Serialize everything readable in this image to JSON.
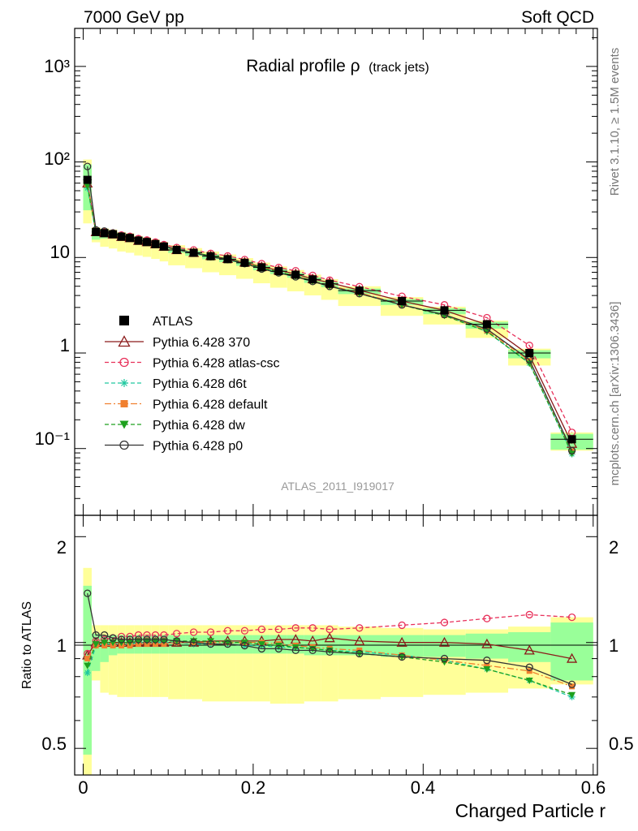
{
  "header": {
    "left": "7000 GeV pp",
    "right": "Soft QCD"
  },
  "side_labels": {
    "rivet": "Rivet 3.1.10, ≥ 1.5M events",
    "mcplots": "mcplots.cern.ch [arXiv:1306.3436]"
  },
  "chart_data": {
    "type": "line",
    "title": "Radial profile ρ",
    "title_suffix": "(track jets)",
    "analysis_label": "ATLAS_2011_I919017",
    "xlabel": "Charged Particle r",
    "ylabel_ratio": "Ratio to ATLAS",
    "xlim": [
      -0.01,
      0.605
    ],
    "ylim_main": [
      0.02,
      2500
    ],
    "ylim_ratio": [
      0.42,
      2.3
    ],
    "yscale_main": "log",
    "yscale_ratio": "log",
    "x_ticks": [
      "0",
      "0.2",
      "0.4",
      "0.6"
    ],
    "main_y_ticks": [
      "10⁻¹",
      "1",
      "10",
      "10²",
      "10³"
    ],
    "ratio_y_ticks": [
      "0.5",
      "1",
      "2"
    ],
    "legend_position": "left-middle",
    "x": [
      0.005,
      0.015,
      0.025,
      0.035,
      0.045,
      0.055,
      0.065,
      0.075,
      0.085,
      0.095,
      0.11,
      0.13,
      0.15,
      0.17,
      0.19,
      0.21,
      0.23,
      0.25,
      0.27,
      0.29,
      0.325,
      0.375,
      0.425,
      0.475,
      0.525,
      0.575
    ],
    "bins": [
      [
        0.0,
        0.01
      ],
      [
        0.01,
        0.02
      ],
      [
        0.02,
        0.03
      ],
      [
        0.03,
        0.04
      ],
      [
        0.04,
        0.05
      ],
      [
        0.05,
        0.06
      ],
      [
        0.06,
        0.07
      ],
      [
        0.07,
        0.08
      ],
      [
        0.08,
        0.09
      ],
      [
        0.09,
        0.1
      ],
      [
        0.1,
        0.12
      ],
      [
        0.12,
        0.14
      ],
      [
        0.14,
        0.16
      ],
      [
        0.16,
        0.18
      ],
      [
        0.18,
        0.2
      ],
      [
        0.2,
        0.22
      ],
      [
        0.22,
        0.24
      ],
      [
        0.24,
        0.26
      ],
      [
        0.26,
        0.28
      ],
      [
        0.28,
        0.3
      ],
      [
        0.3,
        0.35
      ],
      [
        0.35,
        0.4
      ],
      [
        0.4,
        0.45
      ],
      [
        0.45,
        0.5
      ],
      [
        0.5,
        0.55
      ],
      [
        0.55,
        0.6
      ]
    ],
    "data": {
      "name": "ATLAS",
      "values": [
        65,
        18.5,
        18.0,
        17.5,
        16.5,
        16.0,
        15.0,
        14.5,
        13.8,
        13.0,
        12.0,
        11.2,
        10.3,
        9.6,
        8.8,
        7.9,
        7.2,
        6.6,
        5.9,
        5.3,
        4.5,
        3.5,
        2.8,
        2.0,
        1.0,
        0.125
      ]
    },
    "band_inner": [
      [
        0.48,
        1.45
      ],
      [
        0.83,
        1.06
      ],
      [
        0.88,
        1.05
      ],
      [
        0.92,
        1.05
      ],
      [
        0.93,
        1.05
      ],
      [
        0.93,
        1.05
      ],
      [
        0.93,
        1.05
      ],
      [
        0.93,
        1.05
      ],
      [
        0.93,
        1.05
      ],
      [
        0.93,
        1.05
      ],
      [
        0.93,
        1.05
      ],
      [
        0.93,
        1.05
      ],
      [
        0.93,
        1.05
      ],
      [
        0.93,
        1.05
      ],
      [
        0.93,
        1.05
      ],
      [
        0.93,
        1.05
      ],
      [
        0.93,
        1.05
      ],
      [
        0.93,
        1.05
      ],
      [
        0.92,
        1.05
      ],
      [
        0.92,
        1.05
      ],
      [
        0.92,
        1.05
      ],
      [
        0.91,
        1.05
      ],
      [
        0.91,
        1.05
      ],
      [
        0.9,
        1.06
      ],
      [
        0.88,
        1.07
      ],
      [
        0.78,
        1.14
      ]
    ],
    "band_outer": [
      [
        0.35,
        1.63
      ],
      [
        0.78,
        1.12
      ],
      [
        0.72,
        1.12
      ],
      [
        0.71,
        1.12
      ],
      [
        0.7,
        1.12
      ],
      [
        0.7,
        1.12
      ],
      [
        0.7,
        1.12
      ],
      [
        0.7,
        1.12
      ],
      [
        0.7,
        1.12
      ],
      [
        0.7,
        1.12
      ],
      [
        0.69,
        1.12
      ],
      [
        0.69,
        1.12
      ],
      [
        0.68,
        1.12
      ],
      [
        0.68,
        1.12
      ],
      [
        0.68,
        1.12
      ],
      [
        0.68,
        1.12
      ],
      [
        0.67,
        1.12
      ],
      [
        0.67,
        1.12
      ],
      [
        0.68,
        1.12
      ],
      [
        0.68,
        1.12
      ],
      [
        0.69,
        1.11
      ],
      [
        0.7,
        1.1
      ],
      [
        0.71,
        1.09
      ],
      [
        0.72,
        1.09
      ],
      [
        0.74,
        1.11
      ],
      [
        0.76,
        1.18
      ]
    ],
    "series": [
      {
        "name": "Pythia 6.428 370",
        "color": "#8b1a1a",
        "dash": "",
        "marker": "triangle-open",
        "ratio": [
          0.92,
          1.0,
          1.0,
          1.0,
          1.0,
          1.0,
          1.0,
          1.0,
          1.0,
          1.0,
          1.0,
          1.0,
          1.01,
          1.01,
          1.01,
          1.01,
          1.02,
          1.02,
          1.01,
          1.03,
          1.01,
          1.0,
          1.0,
          0.99,
          0.95,
          0.9
        ]
      },
      {
        "name": "Pythia 6.428 atlas-csc",
        "color": "#e8305a",
        "dash": "5,3",
        "marker": "circle-open",
        "ratio": [
          0.93,
          1.01,
          1.02,
          1.03,
          1.04,
          1.04,
          1.05,
          1.05,
          1.05,
          1.05,
          1.06,
          1.07,
          1.07,
          1.08,
          1.08,
          1.09,
          1.09,
          1.1,
          1.1,
          1.09,
          1.1,
          1.12,
          1.14,
          1.17,
          1.2,
          1.18
        ]
      },
      {
        "name": "Pythia 6.428 d6t",
        "color": "#20c8a0",
        "dash": "5,3",
        "marker": "star",
        "ratio": [
          0.82,
          0.98,
          0.99,
          0.99,
          0.99,
          0.99,
          1.0,
          1.0,
          1.0,
          1.0,
          1.0,
          0.99,
          0.99,
          0.99,
          0.98,
          0.98,
          0.97,
          0.97,
          0.96,
          0.95,
          0.94,
          0.92,
          0.89,
          0.84,
          0.78,
          0.7
        ]
      },
      {
        "name": "Pythia 6.428 default",
        "color": "#f08030",
        "dash": "8,3,2,3",
        "marker": "square",
        "ratio": [
          0.9,
          0.98,
          0.98,
          0.98,
          0.98,
          0.98,
          0.99,
          0.99,
          0.99,
          0.99,
          1.0,
          1.0,
          1.0,
          1.0,
          1.0,
          1.0,
          0.99,
          0.98,
          0.97,
          0.96,
          0.95,
          0.92,
          0.89,
          0.86,
          0.83,
          0.75
        ]
      },
      {
        "name": "Pythia 6.428 dw",
        "color": "#1ea01e",
        "dash": "5,3",
        "marker": "triangle-down",
        "ratio": [
          0.86,
          0.99,
          1.0,
          1.0,
          1.0,
          1.0,
          1.01,
          1.01,
          1.01,
          1.01,
          1.01,
          1.01,
          1.01,
          1.0,
          1.0,
          0.99,
          0.98,
          0.97,
          0.96,
          0.95,
          0.93,
          0.91,
          0.88,
          0.84,
          0.78,
          0.71
        ]
      },
      {
        "name": "Pythia 6.428 p0",
        "color": "#333333",
        "dash": "",
        "marker": "circle-open",
        "ratio": [
          1.38,
          1.05,
          1.05,
          1.03,
          1.02,
          1.02,
          1.02,
          1.02,
          1.02,
          1.02,
          1.01,
          1.0,
          0.99,
          0.99,
          0.98,
          0.96,
          0.96,
          0.95,
          0.95,
          0.94,
          0.93,
          0.91,
          0.9,
          0.89,
          0.85,
          0.76
        ]
      }
    ]
  }
}
